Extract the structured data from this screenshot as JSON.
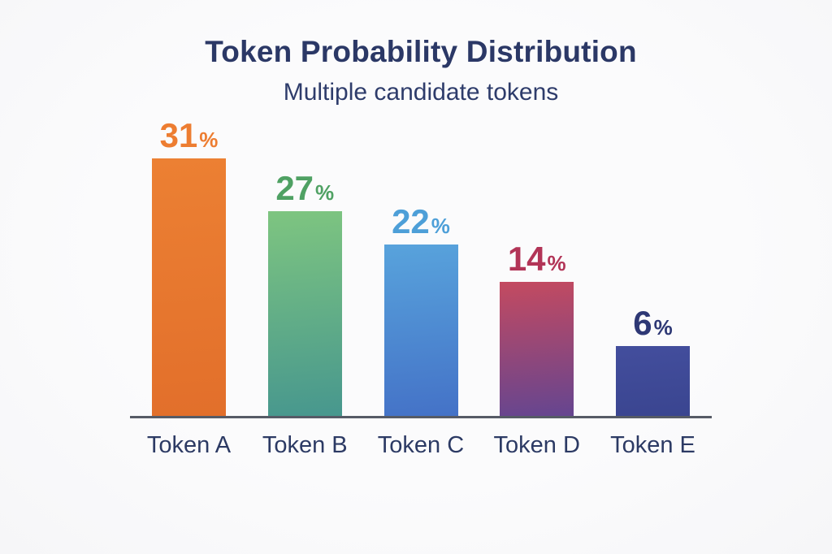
{
  "chart_data": {
    "type": "bar",
    "title": "Token Probability Distribution",
    "subtitle": "Multiple candidate tokens",
    "categories": [
      "Token A",
      "Token B",
      "Token C",
      "Token D",
      "Token E"
    ],
    "values": [
      31,
      27,
      22,
      14,
      6
    ],
    "unit": "%",
    "xlabel": "",
    "ylabel": "",
    "ylim": [
      0,
      33
    ],
    "grid": false,
    "legend": false,
    "value_label_position": "above-bar",
    "axis_line_color": "#565b66",
    "text_color": "#2c3a64",
    "background_color": "#fafafb",
    "bars": [
      {
        "category": "Token A",
        "value": 31,
        "color_top": "#ec8033",
        "color_bottom": "#e26f2b",
        "label_color": "#ed7d31"
      },
      {
        "category": "Token B",
        "value": 27,
        "color_top": "#7ec580",
        "color_bottom": "#47978e",
        "label_color": "#4fa163"
      },
      {
        "category": "Token C",
        "value": 22,
        "color_top": "#58a3dc",
        "color_bottom": "#4472c7",
        "label_color": "#4d9fd8"
      },
      {
        "category": "Token D",
        "value": 14,
        "color_top": "#c44a60",
        "color_bottom": "#654590",
        "label_color": "#b23457"
      },
      {
        "category": "Token E",
        "value": 6,
        "color_top": "#434e9d",
        "color_bottom": "#3a4590",
        "label_color": "#2e3875"
      }
    ]
  }
}
